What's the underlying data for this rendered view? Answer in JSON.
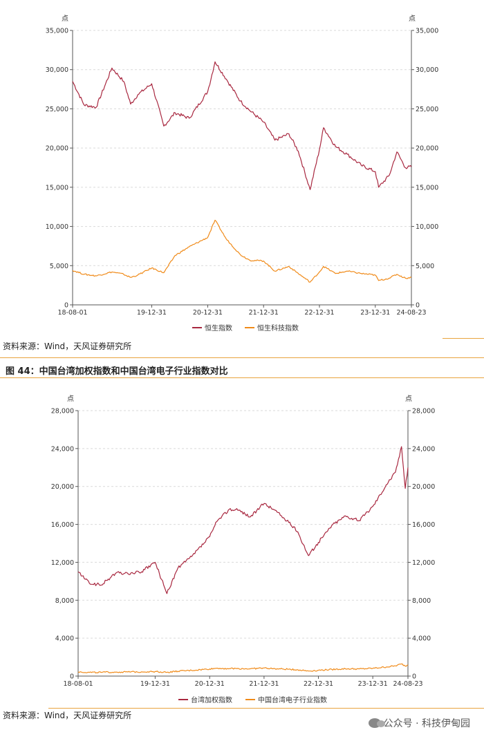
{
  "charts": [
    {
      "unit_left": "点",
      "unit_right": "点",
      "x_ticks": [
        "18-08-01",
        "19-12-31",
        "20-12-31",
        "21-12-31",
        "22-12-31",
        "23-12-31",
        "24-08-23"
      ],
      "y_ticks": [
        "0",
        "5,000",
        "10,000",
        "15,000",
        "20,000",
        "25,000",
        "30,000",
        "35,000"
      ],
      "source": "资料来源：Wind，天风证券研究所"
    },
    {
      "figure_title": "图 44：中国台湾加权指数和中国台湾电子行业指数对比",
      "unit_left": "点",
      "unit_right": "点",
      "x_ticks": [
        "18-08-01",
        "19-12-31",
        "20-12-31",
        "21-12-31",
        "22-12-31",
        "23-12-31",
        "24-08-23"
      ],
      "y_ticks": [
        "0",
        "4,000",
        "8,000",
        "12,000",
        "16,000",
        "20,000",
        "24,000",
        "28,000"
      ],
      "source": "资料来源：Wind，天风证券研究所"
    }
  ],
  "watermark": "公众号 · 科技伊甸园",
  "colors": {
    "series_a": "#a8273f",
    "series_b": "#f08a18",
    "grid": "#d9d9d9",
    "rule": "#e8a33d"
  },
  "chart_data": [
    {
      "type": "line",
      "x": [
        "18-08-01",
        "18-10-15",
        "19-01-02",
        "19-04-15",
        "19-07-01",
        "19-08-15",
        "19-10-01",
        "19-12-31",
        "20-03-19",
        "20-06-01",
        "20-09-01",
        "20-12-31",
        "21-02-17",
        "21-05-01",
        "21-08-01",
        "21-10-01",
        "21-12-31",
        "22-03-15",
        "22-06-15",
        "22-08-15",
        "22-10-31",
        "22-12-31",
        "23-01-27",
        "23-04-15",
        "23-07-01",
        "23-09-30",
        "23-12-31",
        "24-01-22",
        "24-03-31",
        "24-05-20",
        "24-07-15",
        "24-08-23"
      ],
      "series": [
        {
          "name": "恒生指数",
          "values": [
            28500,
            25500,
            25200,
            30200,
            28500,
            25600,
            26800,
            28200,
            22800,
            24500,
            23800,
            27200,
            31000,
            28800,
            26000,
            24800,
            23300,
            21000,
            21800,
            19600,
            14700,
            19800,
            22600,
            20200,
            19200,
            17800,
            17000,
            15000,
            16500,
            19500,
            17500,
            17600
          ]
        },
        {
          "name": "恒生科技指数",
          "values": [
            4400,
            3900,
            3700,
            4200,
            3900,
            3500,
            3800,
            4700,
            4100,
            6300,
            7400,
            8600,
            10800,
            8400,
            6400,
            5700,
            5600,
            4300,
            4900,
            4000,
            2900,
            4200,
            4900,
            4000,
            4300,
            4000,
            3800,
            3100,
            3400,
            3900,
            3400,
            3500
          ]
        }
      ],
      "ylim": [
        0,
        35000
      ]
    },
    {
      "type": "line",
      "x": [
        "18-08-01",
        "18-10-15",
        "19-01-02",
        "19-04-15",
        "19-07-01",
        "19-10-01",
        "19-12-31",
        "20-03-19",
        "20-06-01",
        "20-09-01",
        "20-12-31",
        "21-02-17",
        "21-05-12",
        "21-07-15",
        "21-10-01",
        "21-12-31",
        "22-03-15",
        "22-06-15",
        "22-08-15",
        "22-10-25",
        "22-12-31",
        "23-03-31",
        "23-06-30",
        "23-09-30",
        "23-12-31",
        "24-03-31",
        "24-05-31",
        "24-07-11",
        "24-08-05",
        "24-08-23"
      ],
      "series": [
        {
          "name": "台湾加权指数",
          "values": [
            11000,
            9800,
            9600,
            10900,
            10800,
            11000,
            12000,
            8700,
            11400,
            12600,
            14700,
            16300,
            17600,
            17500,
            16800,
            18200,
            17500,
            16200,
            15200,
            12700,
            14100,
            15900,
            16900,
            16400,
            17900,
            20200,
            21500,
            24200,
            19800,
            22000
          ]
        },
        {
          "name": "中国台湾电子行业指数",
          "values": [
            440,
            390,
            390,
            420,
            430,
            450,
            480,
            400,
            510,
            600,
            750,
            830,
            790,
            790,
            770,
            850,
            770,
            720,
            660,
            540,
            610,
            700,
            770,
            750,
            820,
            960,
            1080,
            1280,
            1050,
            1180
          ]
        }
      ],
      "ylim": [
        0,
        28000
      ]
    }
  ]
}
